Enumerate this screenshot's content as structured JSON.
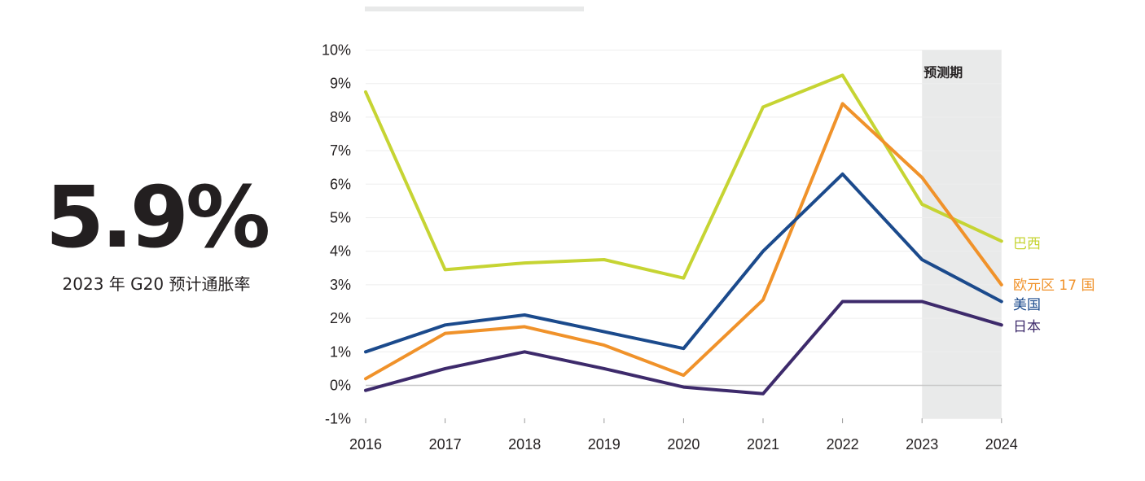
{
  "kpi": {
    "value": "5.9%",
    "caption": "2023 年 G20 预计通胀率"
  },
  "chart_data": {
    "type": "line",
    "x": [
      "2016",
      "2017",
      "2018",
      "2019",
      "2020",
      "2021",
      "2022",
      "2023",
      "2024"
    ],
    "ylim": [
      -1,
      10
    ],
    "yticks": [
      "-1%",
      "0%",
      "1%",
      "2%",
      "3%",
      "4%",
      "5%",
      "6%",
      "7%",
      "8%",
      "9%",
      "10%"
    ],
    "grid": true,
    "forecast": {
      "label": "预测期",
      "start": "2023",
      "end": "2024",
      "color": "#e9eaea"
    },
    "series": [
      {
        "name": "巴西",
        "color": "#c6d433",
        "values": [
          8.75,
          3.45,
          3.65,
          3.75,
          3.2,
          8.3,
          9.25,
          5.4,
          4.3
        ]
      },
      {
        "name": "欧元区 17 国",
        "color": "#f0922a",
        "values": [
          0.2,
          1.55,
          1.75,
          1.2,
          0.3,
          2.55,
          8.4,
          6.2,
          3.0
        ]
      },
      {
        "name": "美国",
        "color": "#1b4a8c",
        "values": [
          1.0,
          1.8,
          2.1,
          1.6,
          1.1,
          4.0,
          6.3,
          3.75,
          2.5
        ]
      },
      {
        "name": "日本",
        "color": "#3d2a6b",
        "values": [
          -0.15,
          0.5,
          1.0,
          0.5,
          -0.05,
          -0.25,
          2.5,
          2.5,
          1.8
        ]
      }
    ]
  }
}
